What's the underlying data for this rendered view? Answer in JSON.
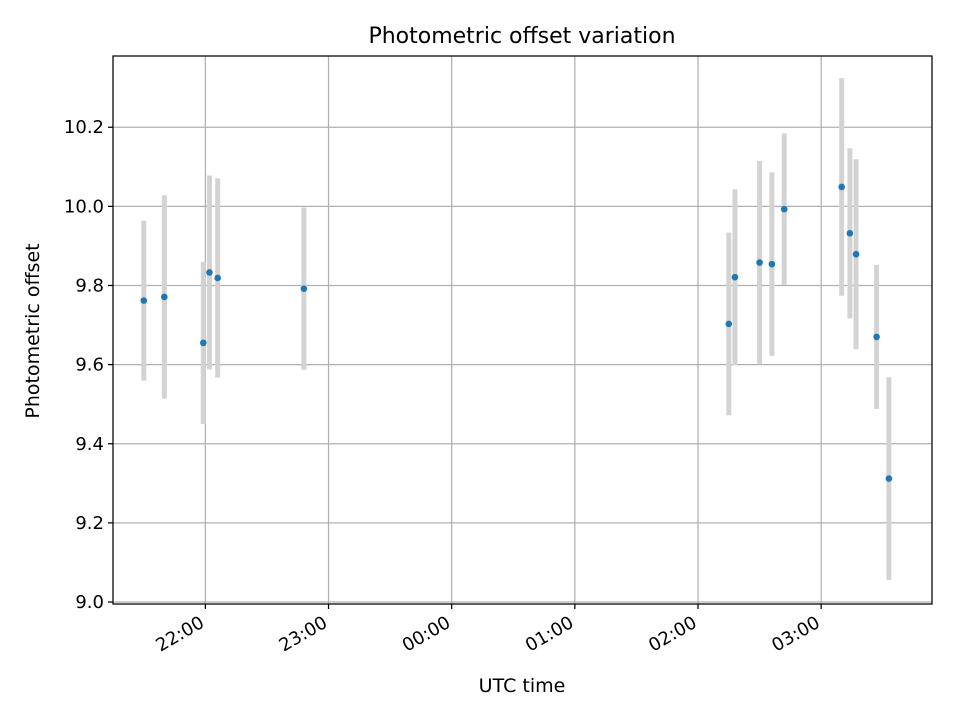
{
  "chart_data": {
    "type": "scatter",
    "title": "Photometric offset variation",
    "xlabel": "UTC time",
    "ylabel": "Photometric offset",
    "x_ticks": [
      "22:00",
      "23:00",
      "00:00",
      "01:00",
      "02:00",
      "03:00"
    ],
    "y_ticks": [
      "9.0",
      "9.2",
      "9.4",
      "9.6",
      "9.8",
      "10.0",
      "10.2"
    ],
    "x_axis": "UTC time of night, ticks hourly from 22:00 to 03:00 (crossing midnight)",
    "ylim": [
      8.995,
      10.38
    ],
    "grid": true,
    "colors": {
      "point": "#1f77b4",
      "errorbar": "#d3d3d3",
      "grid": "#b0b0b0"
    },
    "points": [
      {
        "time": "21:30",
        "value": 9.762,
        "yerr": 0.202
      },
      {
        "time": "21:40",
        "value": 9.771,
        "yerr": 0.257
      },
      {
        "time": "21:59",
        "value": 9.655,
        "yerr": 0.205
      },
      {
        "time": "22:02",
        "value": 9.833,
        "yerr": 0.245
      },
      {
        "time": "22:06",
        "value": 9.819,
        "yerr": 0.252
      },
      {
        "time": "22:48",
        "value": 9.792,
        "yerr": 0.205
      },
      {
        "time": "02:15",
        "value": 9.703,
        "yerr": 0.231
      },
      {
        "time": "02:18",
        "value": 9.821,
        "yerr": 0.222
      },
      {
        "time": "02:30",
        "value": 9.858,
        "yerr": 0.257
      },
      {
        "time": "02:36",
        "value": 9.854,
        "yerr": 0.232
      },
      {
        "time": "02:42",
        "value": 9.993,
        "yerr": 0.191
      },
      {
        "time": "03:10",
        "value": 10.049,
        "yerr": 0.275
      },
      {
        "time": "03:14",
        "value": 9.932,
        "yerr": 0.215
      },
      {
        "time": "03:17",
        "value": 9.879,
        "yerr": 0.24
      },
      {
        "time": "03:27",
        "value": 9.67,
        "yerr": 0.182
      },
      {
        "time": "03:33",
        "value": 9.312,
        "yerr": 0.256
      }
    ]
  }
}
